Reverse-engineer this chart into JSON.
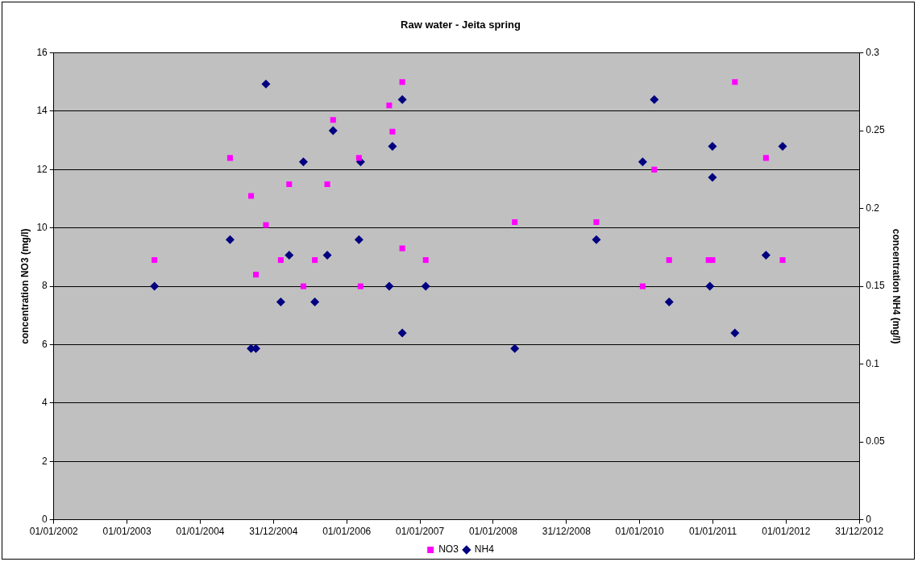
{
  "chart_data": {
    "type": "scatter",
    "title": "Raw water - Jeita spring",
    "ylabel": "concentration NO3 (mg/l)",
    "y2label": "concentration NH4 (mg/l)",
    "xlim": [
      "2002-01-01",
      "2012-12-31T18:00"
    ],
    "xticks": [
      {
        "value": "2002-01-01",
        "label": "01/01/2002"
      },
      {
        "value": "2003-01-01T06:00",
        "label": "01/01/2003"
      },
      {
        "value": "2004-01-01T12:00",
        "label": "01/01/2004"
      },
      {
        "value": "2004-12-31T18:00",
        "label": "31/12/2004"
      },
      {
        "value": "2006-01-01",
        "label": "01/01/2006"
      },
      {
        "value": "2007-01-01T06:00",
        "label": "01/01/2007"
      },
      {
        "value": "2008-01-01T12:00",
        "label": "01/01/2008"
      },
      {
        "value": "2008-12-31T18:00",
        "label": "31/12/2008"
      },
      {
        "value": "2010-01-01",
        "label": "01/01/2010"
      },
      {
        "value": "2011-01-01T06:00",
        "label": "01/01/2011"
      },
      {
        "value": "2012-01-01T12:00",
        "label": "01/01/2012"
      },
      {
        "value": "2012-12-31T18:00",
        "label": "31/12/2012"
      }
    ],
    "ylim": [
      0,
      16
    ],
    "yticks": [
      0,
      2,
      4,
      6,
      8,
      10,
      12,
      14,
      16
    ],
    "y2lim": [
      0,
      0.3
    ],
    "y2ticks": [
      0,
      0.05,
      0.1,
      0.15,
      0.2,
      0.25,
      0.3
    ],
    "grid": "y",
    "legend": "bottom",
    "series": [
      {
        "name": "NO3",
        "color": "#ff00ff",
        "marker": "square",
        "x": [
          "2003-05-18",
          "2004-05-29",
          "2004-09-11",
          "2004-10-05",
          "2004-11-24",
          "2005-02-06",
          "2005-03-20",
          "2005-05-30",
          "2005-07-26",
          "2005-09-26",
          "2005-10-25",
          "2006-03-03",
          "2006-03-11",
          "2006-08-01",
          "2006-08-17",
          "2006-10-05",
          "2006-10-05",
          "2007-01-30",
          "2008-04-18",
          "2009-05-30",
          "2010-01-16",
          "2010-03-15",
          "2010-05-28",
          "2010-12-11",
          "2010-12-30",
          "2011-04-21",
          "2011-09-23",
          "2011-12-15"
        ],
        "values": [
          8.9,
          12.4,
          11.1,
          8.4,
          10.1,
          8.9,
          11.5,
          8.0,
          8.9,
          11.5,
          13.7,
          12.4,
          8.0,
          14.2,
          13.3,
          15.0,
          9.3,
          8.9,
          10.2,
          10.2,
          8.0,
          12.0,
          8.9,
          8.9,
          8.9,
          15.0,
          12.4,
          8.9
        ]
      },
      {
        "name": "NH4",
        "color": "#000080",
        "marker": "diamond",
        "axis": "y2",
        "x": [
          "2003-05-18",
          "2004-05-29",
          "2004-09-11",
          "2004-10-05",
          "2004-11-24",
          "2005-02-06",
          "2005-03-20",
          "2005-05-30",
          "2005-07-26",
          "2005-09-26",
          "2005-10-25",
          "2006-03-03",
          "2006-03-11",
          "2006-08-01",
          "2006-08-17",
          "2006-10-05",
          "2006-10-05",
          "2007-01-30",
          "2008-04-18",
          "2009-05-30",
          "2010-01-16",
          "2010-03-15",
          "2010-05-28",
          "2010-12-17",
          "2010-12-30",
          "2010-12-30",
          "2011-04-21",
          "2011-09-23",
          "2011-12-15"
        ],
        "values": [
          0.15,
          0.18,
          0.11,
          0.11,
          0.28,
          0.14,
          0.17,
          0.23,
          0.14,
          0.17,
          0.25,
          0.18,
          0.23,
          0.15,
          0.24,
          0.27,
          0.12,
          0.15,
          0.11,
          0.18,
          0.23,
          0.27,
          0.14,
          0.15,
          0.24,
          0.22,
          0.12,
          0.17,
          0.24
        ]
      }
    ]
  }
}
